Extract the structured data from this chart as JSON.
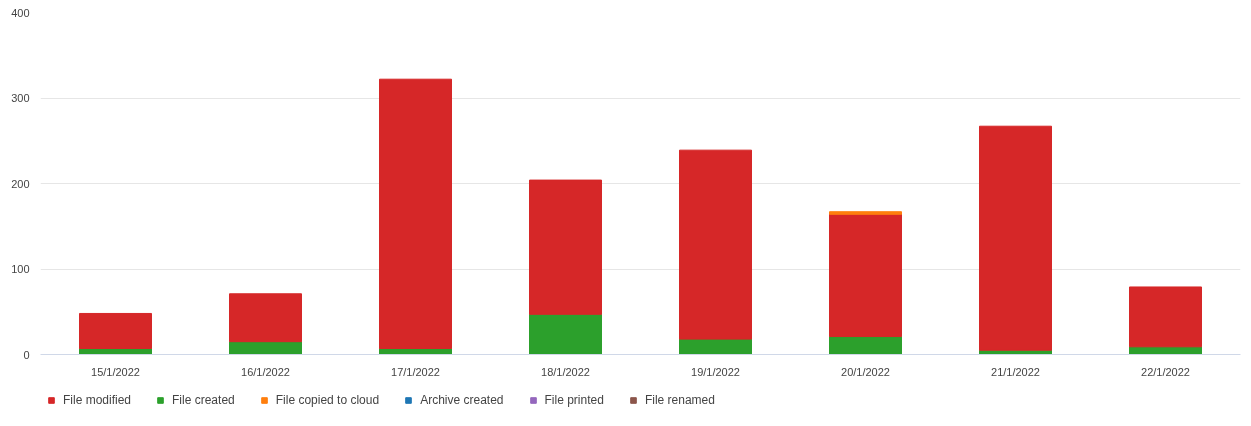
{
  "chart_data": {
    "type": "bar",
    "stacked": true,
    "categories": [
      "15/1/2022",
      "16/1/2022",
      "17/1/2022",
      "18/1/2022",
      "19/1/2022",
      "20/1/2022",
      "21/1/2022",
      "22/1/2022"
    ],
    "series": [
      {
        "name": "File created",
        "color": "#2ca02c",
        "values": [
          7,
          15,
          7,
          47,
          18,
          21,
          5,
          9
        ]
      },
      {
        "name": "File modified",
        "color": "#d62728",
        "values": [
          41,
          56,
          315,
          157,
          221,
          143,
          262,
          70
        ]
      },
      {
        "name": "File copied to cloud",
        "color": "#ff7f0e",
        "values": [
          null,
          null,
          null,
          null,
          null,
          3,
          null,
          null
        ]
      },
      {
        "name": "Archive created",
        "color": "#1f77b4",
        "values": [
          null,
          null,
          null,
          null,
          null,
          null,
          null,
          null
        ]
      },
      {
        "name": "File printed",
        "color": "#9467bd",
        "values": [
          null,
          null,
          null,
          null,
          null,
          null,
          null,
          null
        ]
      },
      {
        "name": "File renamed",
        "color": "#8c564b",
        "values": [
          null,
          null,
          null,
          null,
          null,
          null,
          null,
          null
        ]
      }
    ],
    "ylim": [
      0,
      400
    ],
    "yticks": [
      0,
      100,
      200,
      300,
      400
    ],
    "grid": "y",
    "legend": "bottom left"
  }
}
